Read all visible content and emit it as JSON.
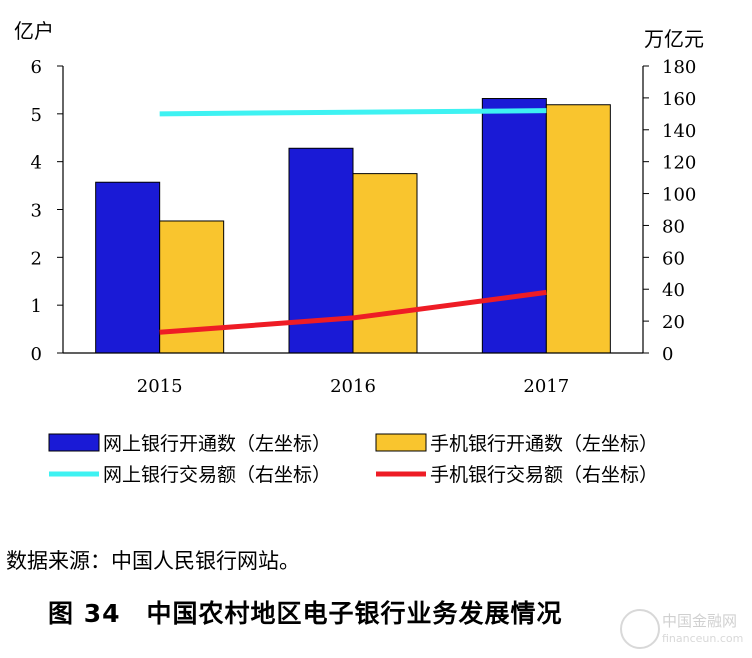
{
  "chart_data": {
    "type": "bar",
    "categories": [
      "2015",
      "2016",
      "2017"
    ],
    "y_left": {
      "unit_label": "亿户",
      "ylim": [
        0,
        6
      ],
      "ticks": [
        0,
        1,
        2,
        3,
        4,
        5,
        6
      ]
    },
    "y_right": {
      "unit_label": "万亿元",
      "ylim": [
        0,
        180
      ],
      "ticks": [
        0,
        20,
        40,
        60,
        80,
        100,
        120,
        140,
        160,
        180
      ]
    },
    "series": [
      {
        "name": "网上银行开通数（左坐标）",
        "type": "bar",
        "axis": "left",
        "color": "#1a1ad6",
        "values": [
          3.57,
          4.28,
          5.32
        ]
      },
      {
        "name": "手机银行开通数（左坐标）",
        "type": "bar",
        "axis": "left",
        "color": "#f9c52e",
        "values": [
          2.76,
          3.75,
          5.19
        ]
      },
      {
        "name": "网上银行交易额（右坐标）",
        "type": "line",
        "axis": "right",
        "color": "#3ef2f2",
        "values": [
          150,
          null,
          152
        ]
      },
      {
        "name": "手机银行交易额（右坐标）",
        "type": "line",
        "axis": "right",
        "color": "#ee1c25",
        "values": [
          13,
          22,
          38
        ]
      }
    ],
    "grid": false,
    "legend": "bottom"
  },
  "source_note": "数据来源：中国人民银行网站。",
  "figure_title": "图 34　中国农村地区电子银行业务发展情况",
  "watermark": {
    "name": "中国金融网",
    "url": "financeun.com"
  }
}
